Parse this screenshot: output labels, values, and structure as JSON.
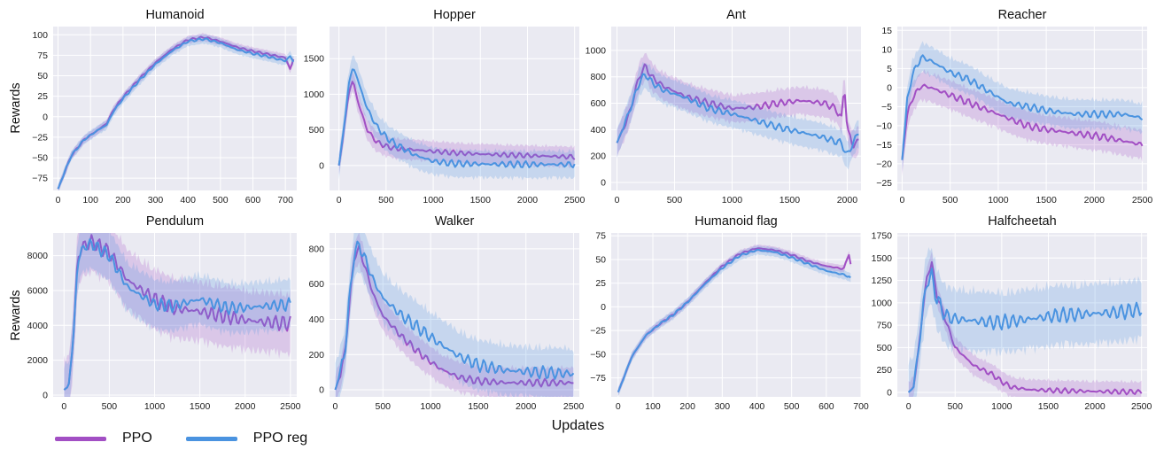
{
  "colors": {
    "ppo": "#a24fc4",
    "ppo_reg": "#4a93e0",
    "plot_bg": "#eaeaf2",
    "grid": "#ffffff"
  },
  "legend": {
    "ppo_label": "PPO",
    "ppo_reg_label": "PPO reg"
  },
  "shared": {
    "xlabel": "Updates",
    "ylabel": "Rewards"
  },
  "chart_data": [
    {
      "type": "line",
      "title": "Humanoid",
      "xlim": [
        -15,
        735
      ],
      "ylim": [
        -90,
        110
      ],
      "xticks": [
        0,
        100,
        200,
        300,
        400,
        500,
        600,
        700
      ],
      "yticks": [
        -75,
        -50,
        -25,
        0,
        25,
        50,
        75,
        100
      ],
      "series": [
        {
          "name": "PPO",
          "x": [
            0,
            40,
            80,
            120,
            150,
            170,
            200,
            250,
            300,
            350,
            400,
            450,
            500,
            550,
            600,
            650,
            700,
            715,
            725
          ],
          "y": [
            -88,
            -48,
            -28,
            -17,
            -8,
            8,
            24,
            46,
            66,
            82,
            94,
            97,
            92,
            85,
            80,
            76,
            72,
            58,
            70
          ],
          "band": 5
        },
        {
          "name": "PPO reg",
          "x": [
            0,
            40,
            80,
            120,
            150,
            170,
            200,
            250,
            300,
            350,
            400,
            450,
            500,
            550,
            600,
            650,
            700,
            715,
            725
          ],
          "y": [
            -88,
            -48,
            -28,
            -17,
            -10,
            6,
            22,
            44,
            64,
            80,
            92,
            95,
            90,
            82,
            77,
            73,
            68,
            74,
            67
          ],
          "band": 6
        }
      ]
    },
    {
      "type": "line",
      "title": "Hopper",
      "xlim": [
        -100,
        2550
      ],
      "ylim": [
        -350,
        1950
      ],
      "xticks": [
        0,
        500,
        1000,
        1500,
        2000,
        2500
      ],
      "yticks": [
        0,
        500,
        1000,
        1500
      ],
      "series": [
        {
          "name": "PPO",
          "x": [
            0,
            50,
            100,
            150,
            200,
            300,
            400,
            500,
            600,
            800,
            1000,
            1200,
            1500,
            2000,
            2500
          ],
          "y": [
            0,
            450,
            1000,
            1200,
            900,
            500,
            330,
            270,
            240,
            220,
            200,
            180,
            160,
            140,
            120
          ],
          "band": 150
        },
        {
          "name": "PPO reg",
          "x": [
            0,
            50,
            100,
            150,
            200,
            300,
            400,
            500,
            600,
            800,
            1000,
            1200,
            1500,
            2000,
            2500
          ],
          "y": [
            0,
            500,
            1100,
            1400,
            1200,
            800,
            550,
            400,
            300,
            150,
            60,
            30,
            20,
            15,
            15
          ],
          "band": 200
        }
      ]
    },
    {
      "type": "line",
      "title": "Ant",
      "xlim": [
        -50,
        2120
      ],
      "ylim": [
        -60,
        1180
      ],
      "xticks": [
        0,
        500,
        1000,
        1500,
        2000
      ],
      "yticks": [
        0,
        200,
        400,
        600,
        800,
        1000
      ],
      "series": [
        {
          "name": "PPO",
          "x": [
            0,
            100,
            200,
            250,
            300,
            400,
            600,
            800,
            1000,
            1200,
            1400,
            1600,
            1800,
            1900,
            1950,
            1975,
            2000,
            2050,
            2100
          ],
          "y": [
            300,
            500,
            820,
            880,
            800,
            730,
            650,
            600,
            560,
            570,
            600,
            620,
            600,
            560,
            480,
            760,
            400,
            280,
            320
          ],
          "band": 110
        },
        {
          "name": "PPO reg",
          "x": [
            0,
            100,
            200,
            250,
            300,
            400,
            600,
            800,
            1000,
            1200,
            1400,
            1600,
            1800,
            1900,
            1950,
            2000,
            2050,
            2100
          ],
          "y": [
            300,
            520,
            770,
            820,
            760,
            700,
            640,
            560,
            520,
            470,
            420,
            380,
            340,
            310,
            300,
            200,
            300,
            380
          ],
          "band": 110
        }
      ]
    },
    {
      "type": "line",
      "title": "Reacher",
      "xlim": [
        -50,
        2550
      ],
      "ylim": [
        -27,
        16
      ],
      "xticks": [
        0,
        500,
        1000,
        1500,
        2000,
        2500
      ],
      "yticks": [
        -25,
        -20,
        -15,
        -10,
        -5,
        0,
        5,
        10,
        15
      ],
      "series": [
        {
          "name": "PPO",
          "x": [
            0,
            50,
            100,
            200,
            300,
            500,
            700,
            900,
            1100,
            1300,
            1500,
            1800,
            2100,
            2300,
            2500
          ],
          "y": [
            -19,
            -8,
            -3,
            0.5,
            0,
            -2,
            -4,
            -6,
            -8,
            -10,
            -11,
            -12,
            -13,
            -14,
            -15
          ],
          "band": 4
        },
        {
          "name": "PPO reg",
          "x": [
            0,
            50,
            100,
            200,
            300,
            500,
            700,
            900,
            1100,
            1300,
            1500,
            1800,
            2100,
            2300,
            2500
          ],
          "y": [
            -19,
            -4,
            3,
            8,
            7,
            4,
            2,
            -1,
            -4,
            -5,
            -6,
            -7,
            -7,
            -7,
            -8
          ],
          "band": 4
        }
      ]
    },
    {
      "type": "line",
      "title": "Pendulum",
      "xlim": [
        -120,
        2570
      ],
      "ylim": [
        -100,
        9300
      ],
      "xticks": [
        0,
        500,
        1000,
        1500,
        2000,
        2500
      ],
      "yticks": [
        0,
        2000,
        4000,
        6000,
        8000
      ],
      "series": [
        {
          "name": "PPO",
          "x": [
            0,
            50,
            100,
            150,
            200,
            300,
            500,
            700,
            1000,
            1200,
            1500,
            1800,
            2000,
            2200,
            2500
          ],
          "y": [
            300,
            500,
            3000,
            7800,
            8500,
            8800,
            8200,
            6600,
            5500,
            5000,
            4800,
            4500,
            4300,
            4200,
            4100
          ],
          "band": 1800
        },
        {
          "name": "PPO reg",
          "x": [
            0,
            50,
            100,
            150,
            200,
            300,
            500,
            700,
            1000,
            1200,
            1500,
            1800,
            2000,
            2200,
            2500
          ],
          "y": [
            300,
            500,
            3000,
            7600,
            8400,
            8700,
            8000,
            6200,
            5200,
            5100,
            5500,
            5000,
            5000,
            5100,
            5200
          ],
          "band": 1500
        }
      ]
    },
    {
      "type": "line",
      "title": "Walker",
      "xlim": [
        -60,
        2560
      ],
      "ylim": [
        -40,
        890
      ],
      "xticks": [
        0,
        500,
        1000,
        1500,
        2000,
        2500
      ],
      "yticks": [
        0,
        200,
        400,
        600,
        800
      ],
      "series": [
        {
          "name": "PPO",
          "x": [
            0,
            50,
            100,
            150,
            200,
            250,
            300,
            400,
            500,
            700,
            900,
            1100,
            1300,
            1500,
            1800,
            2100,
            2500
          ],
          "y": [
            0,
            80,
            200,
            500,
            760,
            800,
            720,
            540,
            420,
            300,
            200,
            120,
            70,
            50,
            40,
            40,
            40
          ],
          "band": 90
        },
        {
          "name": "PPO reg",
          "x": [
            0,
            50,
            100,
            150,
            200,
            250,
            300,
            400,
            500,
            700,
            900,
            1100,
            1300,
            1500,
            1800,
            2100,
            2500
          ],
          "y": [
            0,
            90,
            210,
            520,
            780,
            820,
            760,
            620,
            520,
            420,
            340,
            260,
            190,
            140,
            110,
            100,
            90
          ],
          "band": 150
        }
      ]
    },
    {
      "type": "line",
      "title": "Humanoid flag",
      "xlim": [
        -20,
        700
      ],
      "ylim": [
        -95,
        78
      ],
      "xticks": [
        0,
        100,
        200,
        300,
        400,
        500,
        600,
        700
      ],
      "yticks": [
        -75,
        -50,
        -25,
        0,
        25,
        50,
        75
      ],
      "series": [
        {
          "name": "PPO",
          "x": [
            0,
            40,
            80,
            120,
            160,
            200,
            250,
            300,
            350,
            400,
            450,
            500,
            550,
            600,
            650,
            665,
            670
          ],
          "y": [
            -90,
            -52,
            -30,
            -18,
            -8,
            5,
            25,
            43,
            56,
            62,
            60,
            55,
            48,
            43,
            40,
            56,
            45
          ],
          "band": 4
        },
        {
          "name": "PPO reg",
          "x": [
            0,
            40,
            80,
            120,
            160,
            200,
            250,
            300,
            350,
            400,
            450,
            500,
            550,
            600,
            650,
            665,
            670
          ],
          "y": [
            -90,
            -52,
            -30,
            -18,
            -8,
            5,
            24,
            41,
            54,
            60,
            58,
            52,
            45,
            38,
            34,
            32,
            30
          ],
          "band": 5
        }
      ]
    },
    {
      "type": "line",
      "title": "Halfcheetah",
      "xlim": [
        -120,
        2560
      ],
      "ylim": [
        -50,
        1780
      ],
      "xticks": [
        0,
        500,
        1000,
        1500,
        2000,
        2500
      ],
      "yticks": [
        0,
        250,
        500,
        750,
        1000,
        1250,
        1500,
        1750
      ],
      "series": [
        {
          "name": "PPO",
          "x": [
            0,
            50,
            100,
            150,
            200,
            250,
            300,
            400,
            500,
            600,
            700,
            800,
            900,
            1000,
            1100,
            1300,
            1600,
            2000,
            2500
          ],
          "y": [
            0,
            50,
            400,
            900,
            1300,
            1450,
            1100,
            800,
            500,
            400,
            300,
            250,
            200,
            120,
            60,
            30,
            20,
            10,
            5
          ],
          "band": 120
        },
        {
          "name": "PPO reg",
          "x": [
            0,
            50,
            100,
            150,
            200,
            250,
            300,
            400,
            500,
            700,
            900,
            1100,
            1300,
            1600,
            2000,
            2300,
            2500
          ],
          "y": [
            0,
            50,
            400,
            900,
            1250,
            1300,
            1050,
            850,
            820,
            800,
            780,
            790,
            820,
            860,
            880,
            900,
            930
          ],
          "band": 350
        }
      ]
    }
  ]
}
